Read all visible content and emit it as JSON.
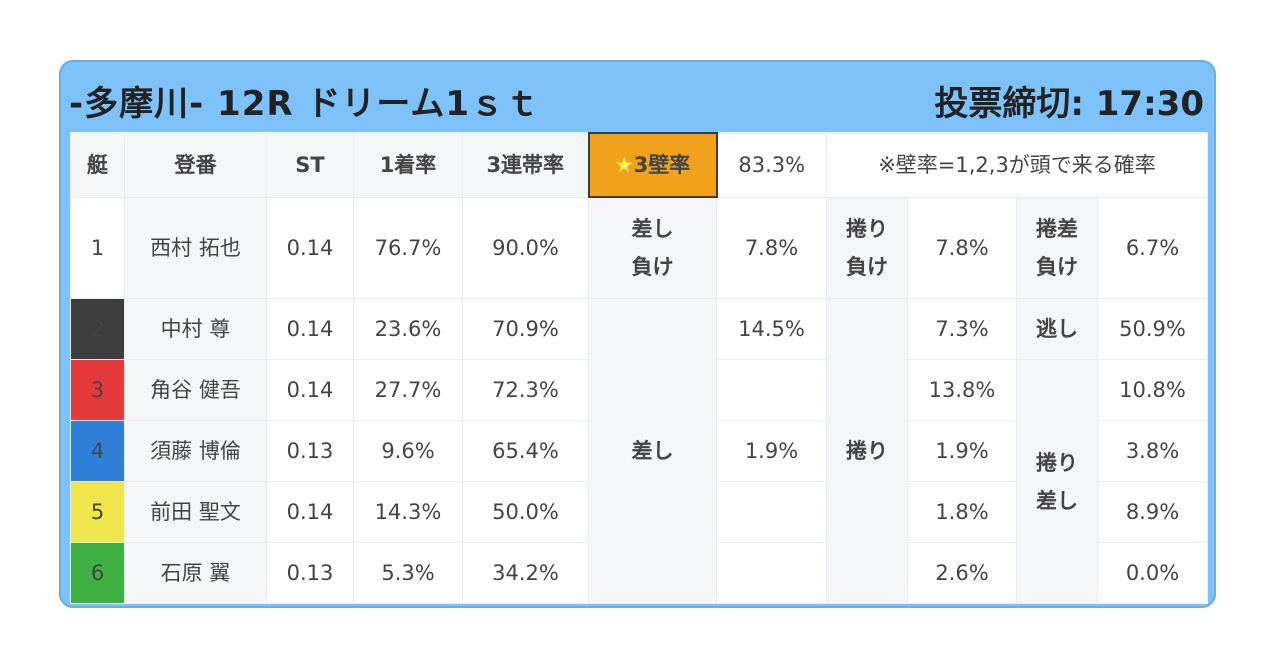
{
  "header": {
    "title": "-多摩川- 12R ドリーム1ｓｔ",
    "deadline": "投票締切: 17:30"
  },
  "columns": {
    "boat": "艇",
    "racer": "登番",
    "st": "ST",
    "first_rate": "1着率",
    "trio_rate": "3連帯率",
    "wall_label_star": "★",
    "wall_label": "3壁率",
    "wall_value": "83.3%",
    "note": "※壁率=1,2,3が頭で来る確率"
  },
  "rows": [
    {
      "boat": "1",
      "name": "西村 拓也",
      "st": "0.14",
      "first": "76.7%",
      "trio": "90.0%"
    },
    {
      "boat": "2",
      "name": "中村 尊",
      "st": "0.14",
      "first": "23.6%",
      "trio": "70.9%"
    },
    {
      "boat": "3",
      "name": "角谷 健吾",
      "st": "0.14",
      "first": "27.7%",
      "trio": "72.3%"
    },
    {
      "boat": "4",
      "name": "須藤 博倫",
      "st": "0.13",
      "first": "9.6%",
      "trio": "65.4%"
    },
    {
      "boat": "5",
      "name": "前田 聖文",
      "st": "0.14",
      "first": "14.3%",
      "trio": "50.0%"
    },
    {
      "boat": "6",
      "name": "石原 翼",
      "st": "0.13",
      "first": "5.3%",
      "trio": "34.2%"
    }
  ],
  "categories": {
    "sashi_make": [
      "差し",
      "負け"
    ],
    "sashi": "差し",
    "makuri_make": [
      "捲り",
      "負け"
    ],
    "makuri": "捲り",
    "makurizashi_make": [
      "捲差",
      "負け"
    ],
    "nigashi": "逃し",
    "makurizashi": [
      "捲り",
      "差し"
    ]
  },
  "values": {
    "sashi_make": "7.8%",
    "sashi": [
      "14.5%",
      "",
      "1.9%",
      "",
      ""
    ],
    "makuri_make": "7.8%",
    "makuri": [
      "7.3%",
      "13.8%",
      "1.9%",
      "1.8%",
      "2.6%"
    ],
    "makurizashi_make": "6.7%",
    "makurizashi": [
      "50.9%",
      "10.8%",
      "3.8%",
      "8.9%",
      "0.0%"
    ]
  }
}
